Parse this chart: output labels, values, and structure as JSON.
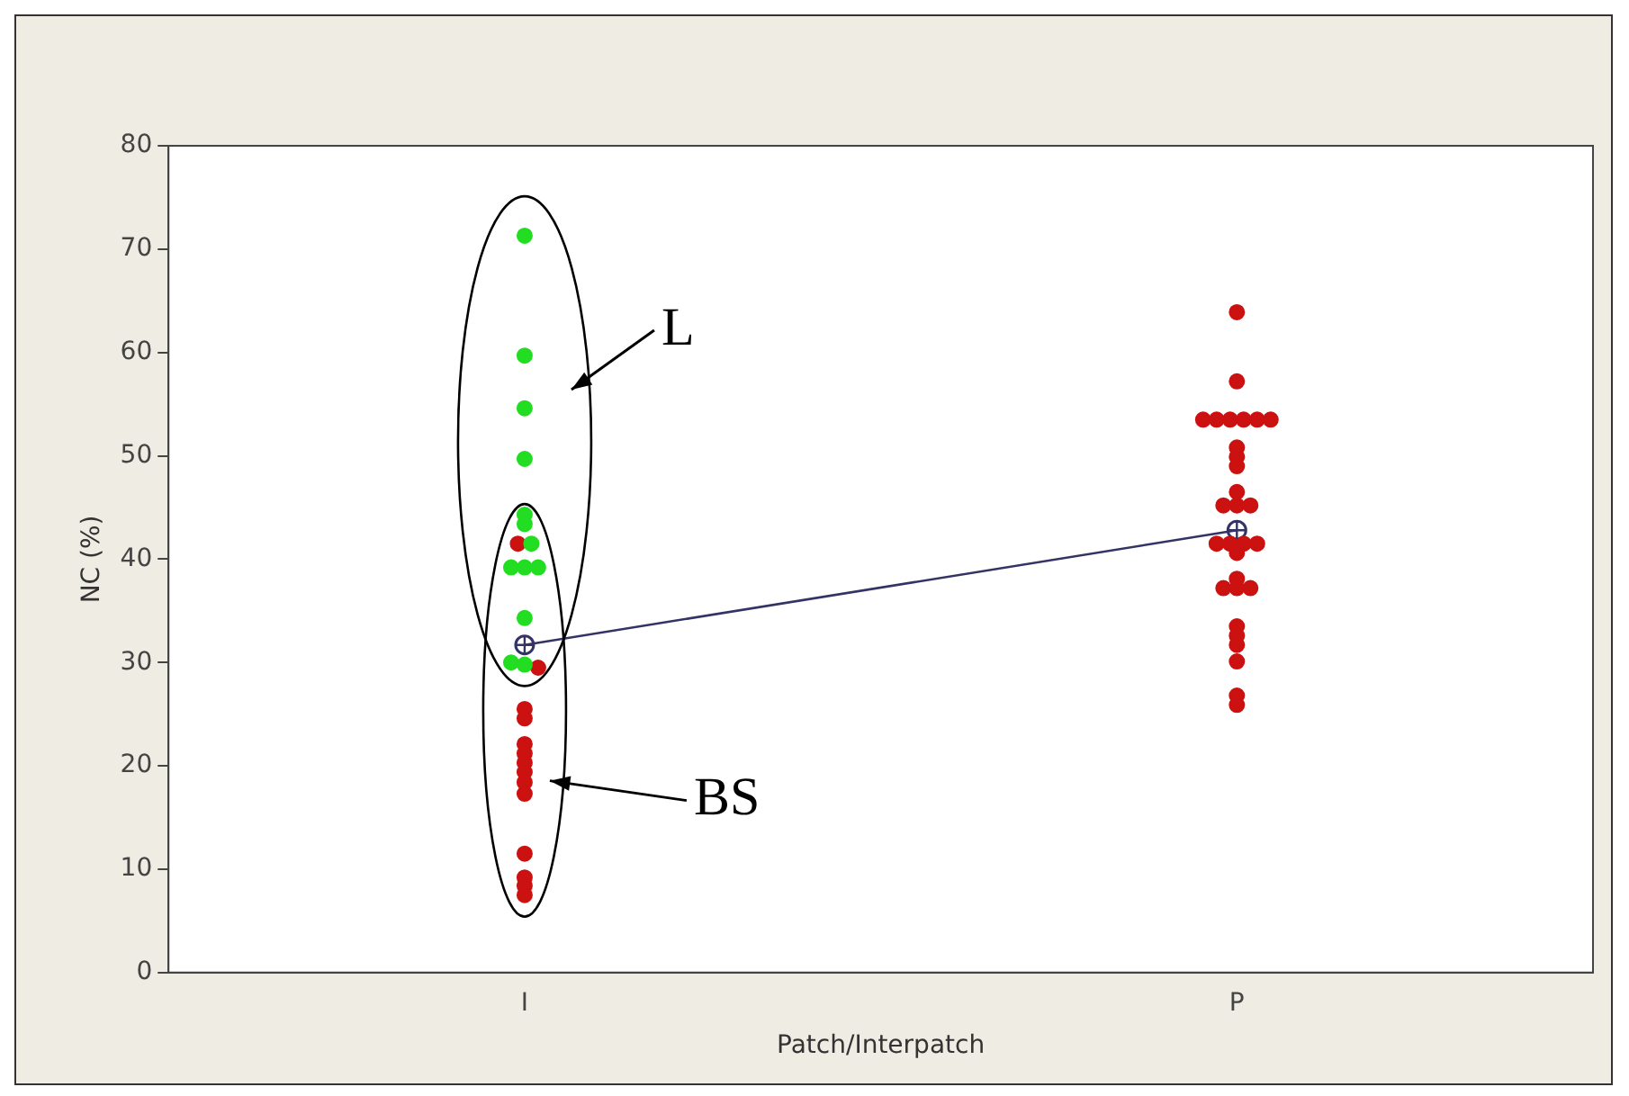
{
  "chart_data": {
    "type": "scatter",
    "xlabel": "Patch/Interpatch",
    "ylabel": "NC (%)",
    "categories": [
      "I",
      "P"
    ],
    "ylim": [
      0,
      80
    ],
    "yticks": [
      0,
      10,
      20,
      30,
      40,
      50,
      60,
      70,
      80
    ],
    "grid": false,
    "legend": false,
    "marker": "circle",
    "series": [
      {
        "color": "#22dd22",
        "x": [
          "I",
          "I",
          "I",
          "I",
          "I",
          "I",
          "I",
          "I",
          "I",
          "I",
          "I",
          "I",
          "I"
        ],
        "values": [
          71.3,
          59.7,
          54.6,
          49.7,
          44.3,
          43.4,
          41.5,
          39.2,
          39.2,
          39.2,
          34.3,
          30,
          29.8
        ]
      },
      {
        "color": "#cc1111",
        "x": [
          "I",
          "I",
          "I",
          "I",
          "I",
          "I",
          "I",
          "I",
          "I",
          "I",
          "I",
          "I",
          "I",
          "I",
          "P",
          "P",
          "P",
          "P",
          "P",
          "P",
          "P",
          "P",
          "P",
          "P",
          "P",
          "P",
          "P",
          "P",
          "P",
          "P",
          "P",
          "P",
          "P",
          "P",
          "P",
          "P",
          "P",
          "P",
          "P",
          "P",
          "P",
          "P",
          "P",
          "P"
        ],
        "values": [
          41.5,
          29.5,
          25.5,
          24.6,
          22.1,
          21.2,
          20.3,
          19.4,
          18.4,
          17.3,
          11.5,
          9.2,
          8.4,
          7.5,
          63.9,
          57.2,
          53.5,
          53.5,
          53.5,
          53.5,
          53.5,
          53.5,
          50.8,
          49.9,
          49.0,
          46.5,
          45.2,
          45.2,
          45.2,
          41.5,
          41.5,
          41.5,
          41.5,
          40.6,
          38.1,
          37.2,
          37.2,
          37.2,
          33.5,
          32.6,
          31.7,
          30.1,
          26.8,
          25.9
        ]
      },
      {
        "type": "line",
        "color": "#333366",
        "x": [
          "I",
          "P"
        ],
        "values": [
          31.7,
          42.8
        ]
      }
    ],
    "annotations": [
      "L",
      "BS"
    ]
  }
}
